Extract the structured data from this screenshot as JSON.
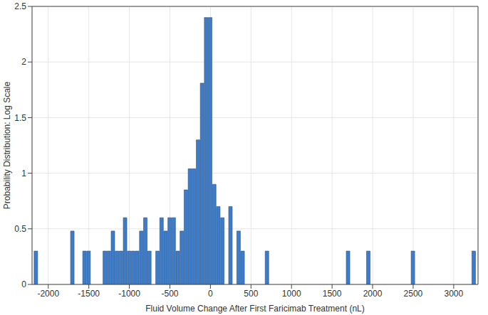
{
  "chart_data": {
    "type": "bar",
    "xlabel": "Fluid Volume Change After First Faricimab Treatment (nL)",
    "ylabel": "Probability Distribution: Log Scale",
    "x": [
      -2150,
      -1700,
      -1550,
      -1500,
      -1300,
      -1250,
      -1200,
      -1150,
      -1100,
      -1050,
      -1000,
      -950,
      -900,
      -850,
      -800,
      -750,
      -650,
      -600,
      -550,
      -500,
      -450,
      -400,
      -350,
      -300,
      -250,
      -200,
      -150,
      -100,
      -50,
      0,
      50,
      100,
      150,
      250,
      350,
      400,
      700,
      1700,
      1950,
      2500,
      3250
    ],
    "values": [
      0.3,
      0.48,
      0.3,
      0.3,
      0.3,
      0.3,
      0.48,
      0.3,
      0.3,
      0.6,
      0.3,
      0.3,
      0.3,
      0.48,
      0.6,
      0.3,
      0.3,
      0.6,
      0.48,
      0.6,
      0.6,
      0.3,
      0.48,
      0.85,
      1.04,
      1.04,
      1.3,
      1.81,
      2.4,
      2.4,
      0.9,
      0.7,
      0.6,
      0.7,
      0.48,
      0.3,
      0.3,
      0.3,
      0.3,
      0.3,
      0.3
    ],
    "color": "#3d7cc9",
    "xlim": [
      -2200,
      3300
    ],
    "xticks": [
      -2000,
      -1500,
      -1000,
      -500,
      0,
      500,
      1000,
      1500,
      2000,
      2500,
      3000
    ],
    "ylim": [
      0,
      2.5
    ],
    "yticks": [
      0,
      0.5,
      1,
      1.5,
      2,
      2.5
    ],
    "grid": true
  }
}
